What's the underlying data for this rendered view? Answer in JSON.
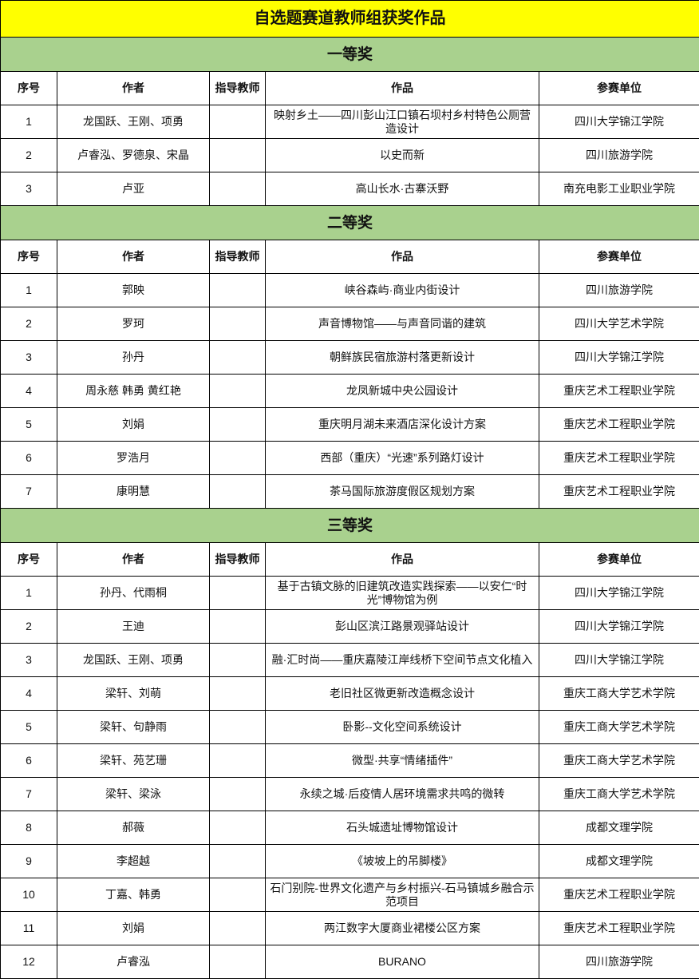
{
  "title": "自选题赛道教师组获奖作品",
  "colors": {
    "title_bg": "#ffff00",
    "section_bg": "#a9d18e"
  },
  "columns": [
    "序号",
    "作者",
    "指导教师",
    "作品",
    "参赛单位"
  ],
  "sections": [
    {
      "name": "一等奖",
      "rows": [
        [
          "1",
          "龙国跃、王刚、项勇",
          "",
          "映射乡土——四川彭山江口镇石坝村乡村特色公厕营造设计",
          "四川大学锦江学院"
        ],
        [
          "2",
          "卢睿泓、罗德泉、宋晶",
          "",
          "以史而新",
          "四川旅游学院"
        ],
        [
          "3",
          "卢亚",
          "",
          "高山长水·古寨沃野",
          "南充电影工业职业学院"
        ]
      ]
    },
    {
      "name": "二等奖",
      "rows": [
        [
          "1",
          "郭映",
          "",
          "峡谷森屿·商业内街设计",
          "四川旅游学院"
        ],
        [
          "2",
          "罗珂",
          "",
          "声音博物馆——与声音同谐的建筑",
          "四川大学艺术学院"
        ],
        [
          "3",
          "孙丹",
          "",
          "朝鲜族民宿旅游村落更新设计",
          "四川大学锦江学院"
        ],
        [
          "4",
          "周永慈 韩勇 黄红艳",
          "",
          "龙凤新城中央公园设计",
          "重庆艺术工程职业学院"
        ],
        [
          "5",
          "刘娟",
          "",
          "重庆明月湖未来酒店深化设计方案",
          "重庆艺术工程职业学院"
        ],
        [
          "6",
          "罗浩月",
          "",
          "西部（重庆）“光速”系列路灯设计",
          "重庆艺术工程职业学院"
        ],
        [
          "7",
          "康明慧",
          "",
          "茶马国际旅游度假区规划方案",
          "重庆艺术工程职业学院"
        ]
      ]
    },
    {
      "name": "三等奖",
      "rows": [
        [
          "1",
          "孙丹、代雨桐",
          "",
          "基于古镇文脉的旧建筑改造实践探索——以安仁“时光”博物馆为例",
          "四川大学锦江学院"
        ],
        [
          "2",
          "王迪",
          "",
          "彭山区滨江路景观驿站设计",
          "四川大学锦江学院"
        ],
        [
          "3",
          "龙国跃、王刚、项勇",
          "",
          "融·汇时尚——重庆嘉陵江岸线桥下空间节点文化植入",
          "四川大学锦江学院"
        ],
        [
          "4",
          "梁轩、刘萌",
          "",
          "老旧社区微更新改造概念设计",
          "重庆工商大学艺术学院"
        ],
        [
          "5",
          "梁轩、句静雨",
          "",
          "卧影--文化空间系统设计",
          "重庆工商大学艺术学院"
        ],
        [
          "6",
          "梁轩、苑艺珊",
          "",
          "微型·共享“情绪插件”",
          "重庆工商大学艺术学院"
        ],
        [
          "7",
          "梁轩、梁泳",
          "",
          "永续之城·后疫情人居环境需求共鸣的微转",
          "重庆工商大学艺术学院"
        ],
        [
          "8",
          "郝薇",
          "",
          "石头城遗址博物馆设计",
          "成都文理学院"
        ],
        [
          "9",
          "李超越",
          "",
          "《坡坡上的吊脚楼》",
          "成都文理学院"
        ],
        [
          "10",
          "丁嘉、韩勇",
          "",
          "石门别院-世界文化遗产与乡村振兴-石马镇城乡融合示范项目",
          "重庆艺术工程职业学院"
        ],
        [
          "11",
          "刘娟",
          "",
          "两江数字大厦商业裙楼公区方案",
          "重庆艺术工程职业学院"
        ],
        [
          "12",
          "卢睿泓",
          "",
          "BURANO",
          "四川旅游学院"
        ]
      ]
    }
  ]
}
